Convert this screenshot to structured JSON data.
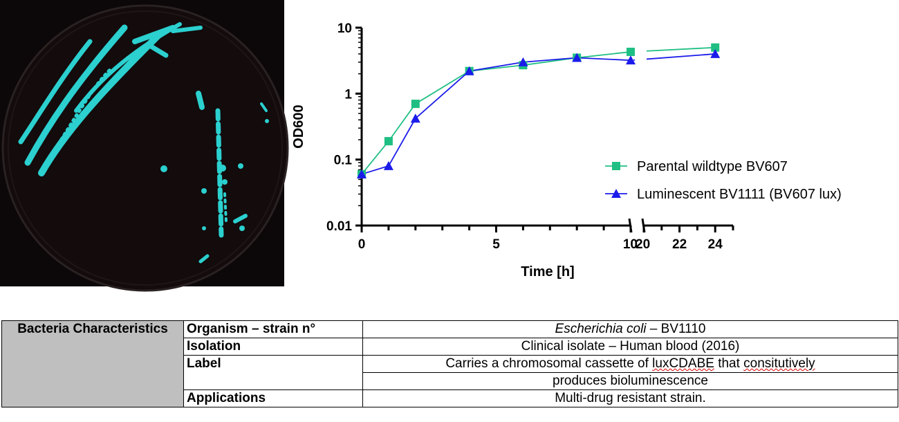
{
  "colors": {
    "series_green": "#1fbf83",
    "series_blue": "#1b1bea",
    "plate_bg": "#0c0708",
    "colony": "#2bd0cf",
    "table_header_bg": "#bfbfbf"
  },
  "chart_data": {
    "type": "line",
    "xlabel": "Time [h]",
    "ylabel": "OD600",
    "yscale": "log",
    "ylim": [
      0.01,
      10
    ],
    "xlim": [
      0,
      25
    ],
    "x_axis_break": [
      10,
      20
    ],
    "y_ticks": [
      "10",
      "1",
      "0.1",
      "0.01"
    ],
    "x_ticks": [
      "0",
      "5",
      "10",
      "20",
      "22",
      "24"
    ],
    "legend_position": "center-right",
    "series": [
      {
        "name": "Parental wildtype BV607",
        "marker": "square",
        "color": "#1fbf83",
        "x": [
          0,
          1,
          2,
          4,
          6,
          8,
          10,
          24
        ],
        "y": [
          0.06,
          0.19,
          0.7,
          2.2,
          2.7,
          3.5,
          4.3,
          5.0
        ]
      },
      {
        "name": "Luminescent BV1111 (BV607 lux)",
        "marker": "triangle",
        "color": "#1b1bea",
        "x": [
          0,
          1,
          2,
          4,
          6,
          8,
          10,
          24
        ],
        "y": [
          0.06,
          0.08,
          0.42,
          2.2,
          3.0,
          3.5,
          3.2,
          4.0
        ]
      }
    ]
  },
  "table": {
    "header": "Bacteria Characteristics",
    "rows": [
      {
        "key": "Organism – strain n°",
        "value_italic": "Escherichia coli",
        "value": " – BV1110"
      },
      {
        "key": "Isolation",
        "value": "Clinical isolate – Human blood (2016)"
      },
      {
        "key": "Label",
        "value_a": "Carries a chromosomal cassette of ",
        "value_b": "luxCDABE",
        "value_c": " that ",
        "value_d": "consitutively",
        "value_e": "produces bioluminescence"
      },
      {
        "key": "Applications",
        "value": "Multi-drug resistant strain."
      }
    ]
  }
}
